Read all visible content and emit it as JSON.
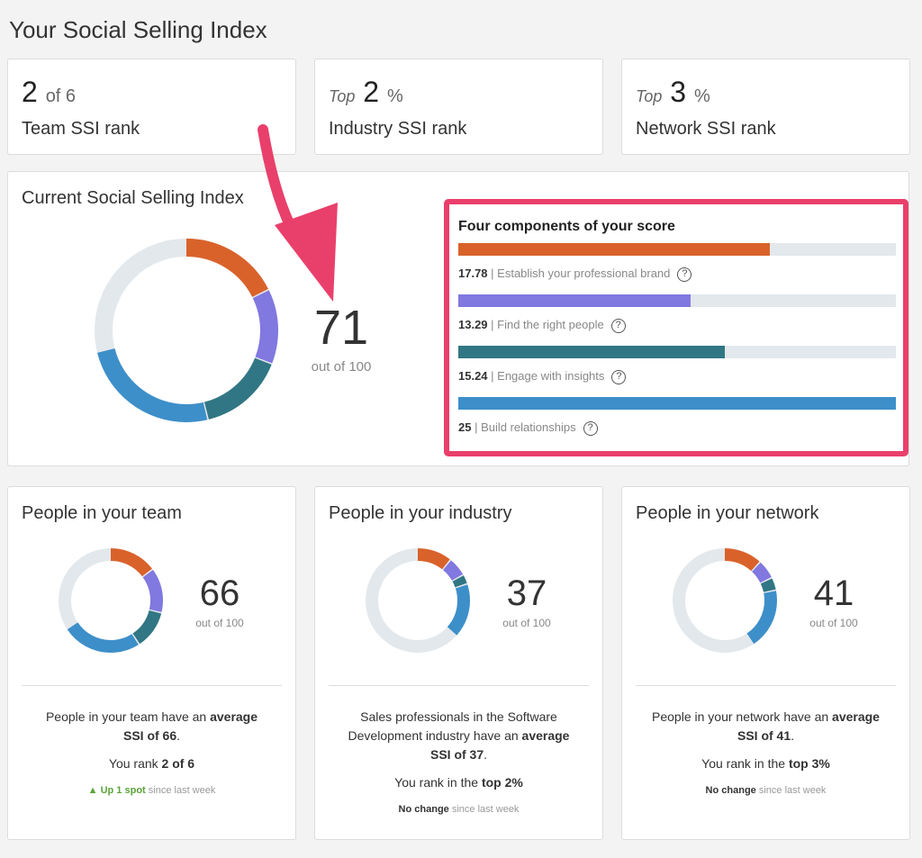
{
  "title": "Your Social Selling Index",
  "ranks": [
    {
      "prefix": "",
      "value": "2",
      "suffix": "of 6",
      "label": "Team SSI rank"
    },
    {
      "prefix": "Top",
      "value": "2",
      "suffix": "%",
      "label": "Industry SSI rank"
    },
    {
      "prefix": "Top",
      "value": "3",
      "suffix": "%",
      "label": "Network SSI rank"
    }
  ],
  "current": {
    "title": "Current Social Selling Index",
    "score": "71",
    "out_of": "out of 100"
  },
  "components": {
    "title": "Four components of your score",
    "max": 25,
    "items": [
      {
        "value": 17.78,
        "value_text": "17.78",
        "label": "| Establish your professional brand",
        "color": "#d9622b"
      },
      {
        "value": 13.29,
        "value_text": "13.29",
        "label": "| Find the right people",
        "color": "#8178e0"
      },
      {
        "value": 15.24,
        "value_text": "15.24",
        "label": "| Engage with insights",
        "color": "#317684"
      },
      {
        "value": 25,
        "value_text": "25",
        "label": "| Build relationships",
        "color": "#3d8fc9"
      }
    ],
    "help_icon": "?"
  },
  "colors": {
    "track": "#e3e8ec",
    "highlight": "#e9406b"
  },
  "groups": [
    {
      "title": "People in your team",
      "score": "66",
      "out_of": "out of 100",
      "segments": [
        15,
        14,
        12,
        25
      ],
      "desc1": "People in your team have an",
      "desc_bold": "average SSI of 66",
      "desc_end": ".",
      "rank_pre": "You rank",
      "rank_bold": "2 of 6",
      "change_bold": "▲ Up 1 spot",
      "change_rest": "since last week",
      "change_color": "#5aa33a"
    },
    {
      "title": "People in your industry",
      "score": "37",
      "out_of": "out of 100",
      "segments": [
        11,
        6,
        3,
        17
      ],
      "desc1": "Sales professionals in the Software Development industry have an",
      "desc_bold": "average SSI of 37",
      "desc_end": ".",
      "rank_pre": "You rank in the",
      "rank_bold": "top 2%",
      "change_bold": "No change",
      "change_rest": "since last week",
      "change_color": "#333"
    },
    {
      "title": "People in your network",
      "score": "41",
      "out_of": "out of 100",
      "segments": [
        12,
        6,
        4,
        19
      ],
      "desc1": "People in your network have an",
      "desc_bold": "average SSI of 41",
      "desc_end": ".",
      "rank_pre": "You rank in the",
      "rank_bold": "top 3%",
      "change_bold": "No change",
      "change_rest": "since last week",
      "change_color": "#333"
    }
  ]
}
